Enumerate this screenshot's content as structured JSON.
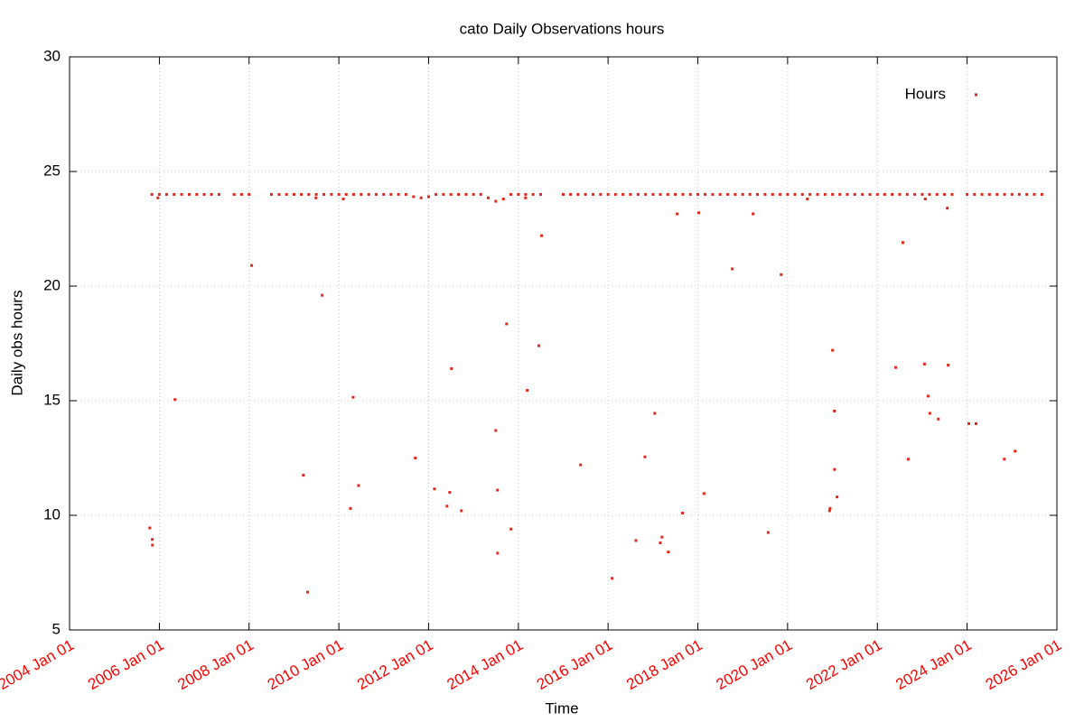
{
  "chart_data": {
    "type": "scatter",
    "title": "cato Daily Observations hours",
    "x_label": "Time",
    "y_label": "Daily obs hours",
    "xlim": [
      "2004-01-01",
      "2026-01-01"
    ],
    "xticks": [
      {
        "value": "2004-01-01",
        "label": "2004 Jan 01"
      },
      {
        "value": "2006-01-01",
        "label": "2006 Jan 01"
      },
      {
        "value": "2008-01-01",
        "label": "2008 Jan 01"
      },
      {
        "value": "2010-01-01",
        "label": "2010 Jan 01"
      },
      {
        "value": "2012-01-01",
        "label": "2012 Jan 01"
      },
      {
        "value": "2014-01-01",
        "label": "2014 Jan 01"
      },
      {
        "value": "2016-01-01",
        "label": "2016 Jan 01"
      },
      {
        "value": "2018-01-01",
        "label": "2018 Jan 01"
      },
      {
        "value": "2020-01-01",
        "label": "2020 Jan 01"
      },
      {
        "value": "2022-01-01",
        "label": "2022 Jan 01"
      },
      {
        "value": "2024-01-01",
        "label": "2024 Jan 01"
      },
      {
        "value": "2026-01-01",
        "label": "2026 Jan 01"
      }
    ],
    "ylim": [
      5,
      30
    ],
    "yticks": [
      5,
      10,
      15,
      20,
      25,
      30
    ],
    "grid": true,
    "legend": "top-right",
    "tick_label_color": "#ff0000",
    "x": [
      "2005-11-01",
      "2006-01-01",
      "2006-03-01",
      "2006-05-01",
      "2006-07-01",
      "2006-09-01",
      "2006-11-01",
      "2007-01-01",
      "2007-03-01",
      "2007-05-01",
      "2007-09-01",
      "2007-11-01",
      "2008-01-01",
      "2008-07-01",
      "2008-09-01",
      "2008-11-01",
      "2009-01-01",
      "2009-03-01",
      "2009-05-01",
      "2009-07-01",
      "2009-09-01",
      "2009-11-01",
      "2010-01-01",
      "2010-03-01",
      "2010-05-01",
      "2010-07-01",
      "2010-09-01",
      "2010-11-01",
      "2011-01-01",
      "2011-03-01",
      "2011-05-01",
      "2011-07-01",
      "2011-09-01",
      "2011-11-01",
      "2012-01-01",
      "2012-03-01",
      "2012-05-01",
      "2012-07-01",
      "2012-09-01",
      "2012-11-01",
      "2013-01-01",
      "2013-03-01",
      "2013-05-01",
      "2013-07-01",
      "2013-09-01",
      "2013-11-01",
      "2014-01-01",
      "2014-03-01",
      "2014-05-01",
      "2014-07-01",
      "2015-01-01",
      "2015-03-01",
      "2015-05-01",
      "2015-07-01",
      "2015-09-01",
      "2015-11-01",
      "2016-01-01",
      "2016-03-01",
      "2016-05-01",
      "2016-07-01",
      "2016-09-01",
      "2016-11-01",
      "2017-01-01",
      "2017-03-01",
      "2017-05-01",
      "2017-07-01",
      "2017-09-01",
      "2017-11-01",
      "2018-01-01",
      "2018-03-01",
      "2018-05-01",
      "2018-07-01",
      "2018-09-01",
      "2018-11-01",
      "2019-01-01",
      "2019-03-01",
      "2019-05-01",
      "2019-07-01",
      "2019-09-01",
      "2019-11-01",
      "2020-01-01",
      "2020-03-01",
      "2020-05-01",
      "2020-07-01",
      "2020-09-01",
      "2020-11-01",
      "2021-01-01",
      "2021-03-01",
      "2021-05-01",
      "2021-07-01",
      "2021-09-01",
      "2021-11-01",
      "2022-01-01",
      "2022-03-01",
      "2022-05-01",
      "2022-07-01",
      "2022-09-01",
      "2022-11-01",
      "2023-01-01",
      "2023-03-01",
      "2023-05-01",
      "2023-07-01",
      "2023-09-01",
      "2024-01-01",
      "2024-03-01",
      "2024-05-01",
      "2024-07-01",
      "2024-09-01",
      "2024-11-01",
      "2025-01-01",
      "2025-03-01",
      "2025-05-01",
      "2025-07-01",
      "2025-09-01",
      "2005-10-15",
      "2005-11-05",
      "2005-11-06",
      "2005-12-20",
      "2006-05-08",
      "2008-01-22",
      "2009-03-18",
      "2009-04-22",
      "2009-06-28",
      "2009-08-18",
      "2010-02-06",
      "2010-04-05",
      "2010-04-27",
      "2010-06-10",
      "2011-09-15",
      "2012-02-18",
      "2012-05-30",
      "2012-06-21",
      "2012-07-05",
      "2012-09-24",
      "2013-07-01",
      "2013-07-15",
      "2013-07-16",
      "2013-09-27",
      "2013-11-02",
      "2014-02-28",
      "2014-03-14",
      "2014-06-17",
      "2014-07-09",
      "2015-05-22",
      "2016-02-03",
      "2016-08-15",
      "2016-10-27",
      "2017-01-15",
      "2017-03-01",
      "2017-03-15",
      "2017-05-05",
      "2017-07-16",
      "2017-08-29",
      "2018-01-08",
      "2018-02-20",
      "2018-10-08",
      "2019-03-26",
      "2019-07-27",
      "2019-11-10",
      "2020-06-10",
      "2020-12-08",
      "2020-12-12",
      "2021-01-01",
      "2021-01-16",
      "2021-01-17",
      "2021-02-07",
      "2022-05-30",
      "2022-07-27",
      "2022-09-09",
      "2023-01-19",
      "2023-01-26",
      "2023-02-18",
      "2023-03-04",
      "2023-05-12",
      "2023-07-24",
      "2023-07-31",
      "2024-01-15",
      "2024-03-14",
      "2024-10-30",
      "2025-01-26"
    ],
    "series": [
      {
        "name": "Hours",
        "color": "#e3261a",
        "values": [
          24,
          24,
          24,
          24,
          24,
          24,
          24,
          24,
          24,
          24,
          24,
          24,
          24,
          24,
          24,
          24,
          24,
          24,
          24,
          24,
          24,
          24,
          24,
          24,
          24,
          24,
          24,
          24,
          24,
          24,
          24,
          24,
          23.9,
          23.85,
          23.9,
          24,
          24,
          24,
          24,
          24,
          24,
          24,
          23.85,
          23.7,
          23.8,
          24,
          24,
          24,
          24,
          24,
          24,
          24,
          24,
          24,
          24,
          24,
          24,
          24,
          24,
          24,
          24,
          24,
          24,
          24,
          24,
          24,
          24,
          24,
          24,
          24,
          24,
          24,
          24,
          24,
          24,
          24,
          24,
          24,
          24,
          24,
          24,
          24,
          24,
          24,
          24,
          24,
          24,
          24,
          24,
          24,
          24,
          24,
          24,
          24,
          24,
          24,
          24,
          24,
          24,
          24,
          24,
          24,
          24,
          24,
          24,
          24,
          24,
          24,
          24,
          24,
          24,
          24,
          24,
          24,
          9.45,
          8.95,
          8.7,
          23.85,
          15.05,
          20.9,
          11.75,
          6.65,
          23.85,
          19.6,
          23.8,
          10.3,
          15.15,
          11.3,
          12.5,
          11.15,
          10.4,
          11.0,
          16.4,
          10.2,
          13.7,
          11.1,
          8.35,
          18.35,
          9.4,
          23.85,
          15.45,
          17.4,
          22.2,
          12.2,
          7.25,
          8.9,
          12.55,
          14.45,
          8.8,
          9.05,
          8.4,
          23.15,
          10.1,
          23.2,
          10.95,
          20.75,
          23.15,
          9.25,
          20.5,
          23.8,
          10.2,
          10.3,
          17.2,
          14.55,
          12.0,
          10.8,
          16.45,
          21.9,
          12.45,
          16.6,
          23.8,
          15.2,
          14.45,
          14.2,
          23.4,
          16.55,
          14.0,
          14.0,
          12.45,
          12.8
        ]
      }
    ]
  }
}
